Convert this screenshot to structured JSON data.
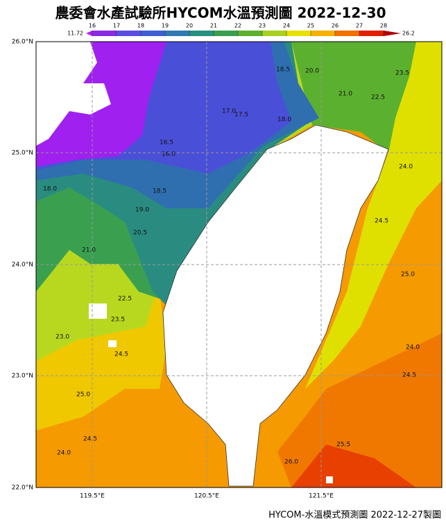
{
  "title": "農委會水產試驗所HYCOM水溫預測圖 2022-12-30",
  "colorbar": {
    "min_label": "11.72",
    "max_label": "26.2",
    "ticks": [
      16,
      17,
      18,
      19,
      20,
      21,
      22,
      23,
      24,
      25,
      26,
      27,
      28
    ],
    "band_colors": [
      "#8a2be2",
      "#5a4fe0",
      "#3f5fd0",
      "#2f7ab0",
      "#2a9080",
      "#3aa050",
      "#60b030",
      "#a8d020",
      "#e8e000",
      "#f5b000",
      "#f07000",
      "#e02000"
    ],
    "low_color": "#b020f0",
    "high_color": "#b00000"
  },
  "lat_labels": [
    "26.0°N",
    "25.0°N",
    "24.0°N",
    "23.0°N",
    "22.0°N"
  ],
  "lon_labels": [
    "119.5°E",
    "120.5°E",
    "121.5°E"
  ],
  "contour_labels": [
    "18.5",
    "20.0",
    "23.5",
    "21.0",
    "22.5",
    "17.0",
    "17.5",
    "18.0",
    "16.5",
    "16.0",
    "24.0",
    "18.0",
    "18.5",
    "19.0",
    "24.5",
    "20.5",
    "21.0",
    "25.0",
    "22.5",
    "23.5",
    "23.0",
    "24.0",
    "24.5",
    "24.5",
    "25.0",
    "24.5",
    "24.0",
    "25.5",
    "26.0"
  ],
  "footer": "HYCOM-水溫模式預測圖 2022-12-27製圖"
}
